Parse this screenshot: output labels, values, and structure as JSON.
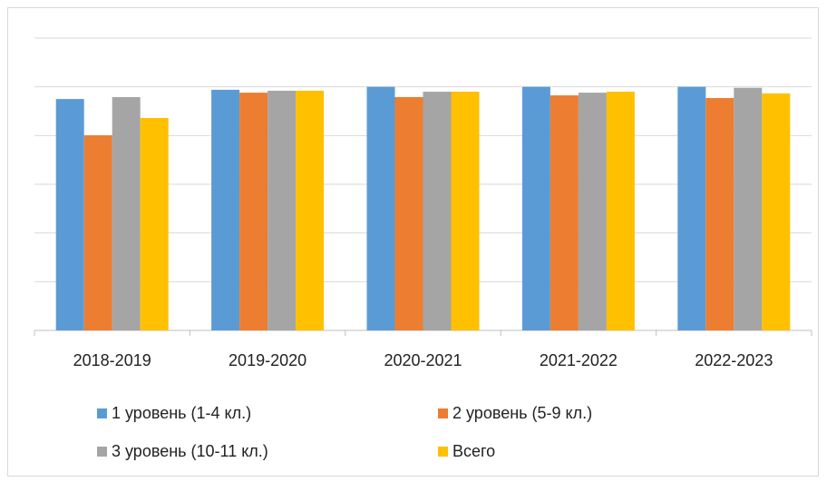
{
  "chart_data": {
    "type": "bar",
    "categories": [
      "2018-2019",
      "2019-2020",
      "2020-2021",
      "2021-2022",
      "2022-2023"
    ],
    "series": [
      {
        "name": "1 уровень (1-4 кл.)",
        "color": "#5b9bd5",
        "values": [
          95.0,
          98.8,
          100,
          100,
          100
        ]
      },
      {
        "name": "2 уровень (5-9 кл.)",
        "color": "#ed7d31",
        "values": [
          80.1,
          97.6,
          95.8,
          96.5,
          95.4
        ]
      },
      {
        "name": "3 уровень (10-11 кл.)",
        "color": "#a5a5a5",
        "values": [
          95.8,
          98.4,
          98.0,
          97.6,
          99.6
        ]
      },
      {
        "name": "Всего",
        "color": "#ffc000",
        "values": [
          87.2,
          98.4,
          98.0,
          98.0,
          97.3
        ]
      }
    ],
    "ylim": [
      0,
      120
    ],
    "yticks": [
      0,
      20,
      40,
      60,
      80,
      100,
      120
    ],
    "grid": true,
    "legend": "bottom"
  }
}
